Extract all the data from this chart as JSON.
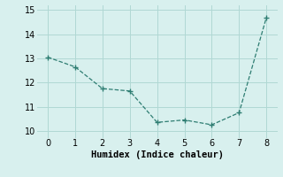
{
  "x": [
    0,
    1,
    2,
    3,
    4,
    5,
    6,
    7,
    8
  ],
  "y": [
    13.05,
    12.65,
    11.75,
    11.65,
    10.35,
    10.45,
    10.25,
    10.75,
    14.7
  ],
  "line_color": "#2e7d72",
  "marker_color": "#2e7d72",
  "background_color": "#d8f0ee",
  "grid_color": "#b0d8d4",
  "xlabel": "Humidex (Indice chaleur)",
  "xlabel_fontsize": 7.5,
  "tick_fontsize": 7,
  "ylim": [
    9.7,
    15.2
  ],
  "xlim": [
    -0.4,
    8.4
  ],
  "yticks": [
    10,
    11,
    12,
    13,
    14,
    15
  ],
  "xticks": [
    0,
    1,
    2,
    3,
    4,
    5,
    6,
    7,
    8
  ]
}
